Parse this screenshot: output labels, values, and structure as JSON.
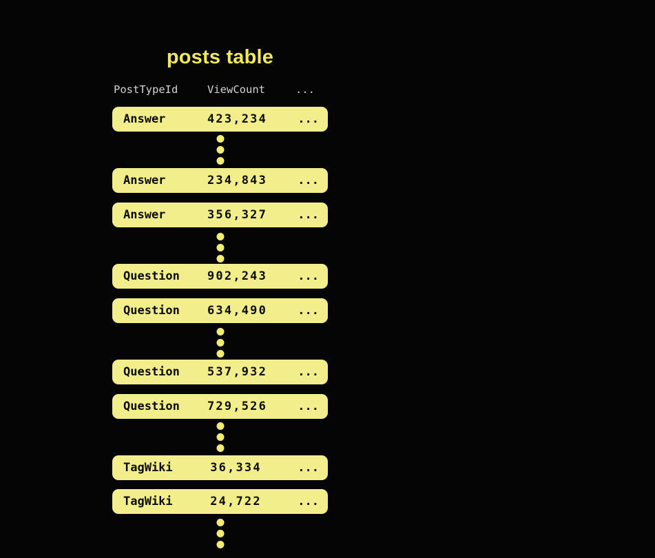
{
  "title": "posts table",
  "table": {
    "columns": [
      "PostTypeId",
      "ViewCount",
      "..."
    ],
    "rows": [
      {
        "post_type_id": "Answer",
        "view_count": "423,234",
        "more": "..."
      },
      {
        "post_type_id": "Answer",
        "view_count": "234,843",
        "more": "..."
      },
      {
        "post_type_id": "Answer",
        "view_count": "356,327",
        "more": "..."
      },
      {
        "post_type_id": "Question",
        "view_count": "902,243",
        "more": "..."
      },
      {
        "post_type_id": "Question",
        "view_count": "634,490",
        "more": "..."
      },
      {
        "post_type_id": "Question",
        "view_count": "537,932",
        "more": "..."
      },
      {
        "post_type_id": "Question",
        "view_count": "729,526",
        "more": "..."
      },
      {
        "post_type_id": "TagWiki",
        "view_count": "36,334",
        "more": "..."
      },
      {
        "post_type_id": "TagWiki",
        "view_count": "24,722",
        "more": "..."
      }
    ]
  },
  "colors": {
    "background": "#050505",
    "row_fill": "#F2EE8C",
    "title_text": "#F0E95D",
    "header_text": "#D2D4D6",
    "row_text": "#0B0B0B",
    "ellipsis_dot": "#F3EC74"
  }
}
